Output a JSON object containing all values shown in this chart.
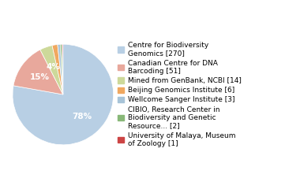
{
  "labels": [
    "Centre for Biodiversity\nGenomics [270]",
    "Canadian Centre for DNA\nBarcoding [51]",
    "Mined from GenBank, NCBI [14]",
    "Beijing Genomics Institute [6]",
    "Wellcome Sanger Institute [3]",
    "CIBIO, Research Center in\nBiodiversity and Genetic\nResource... [2]",
    "University of Malaya, Museum\nof Zoology [1]"
  ],
  "values": [
    270,
    51,
    14,
    6,
    3,
    2,
    1
  ],
  "colors": [
    "#b8cfe4",
    "#e8a89c",
    "#cdd99a",
    "#f0a860",
    "#a8c4d8",
    "#88b878",
    "#cc4444"
  ],
  "background_color": "#ffffff",
  "legend_fontsize": 6.5,
  "pct_fontsize": 7.5,
  "startangle": 90
}
